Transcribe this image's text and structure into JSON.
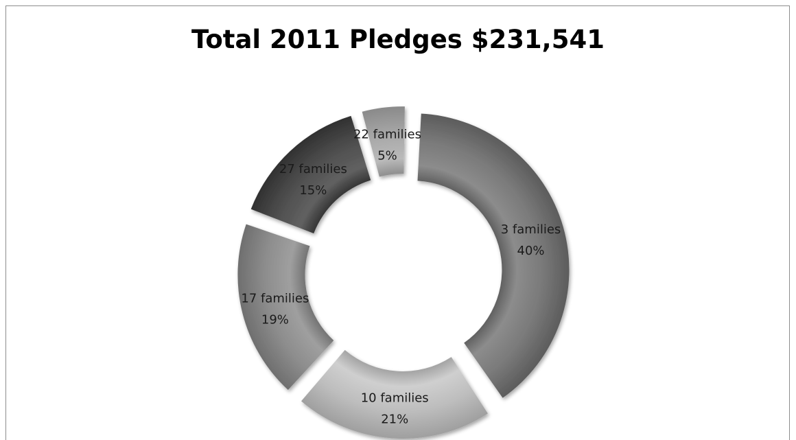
{
  "chart_data": {
    "type": "pie",
    "style": "exploded-donut",
    "title": "Total 2011 Pledges $231,541",
    "slices": [
      {
        "label": "3 families",
        "percent_label": "40%",
        "value": 40,
        "color": "#7a7a7a"
      },
      {
        "label": "10 families",
        "percent_label": "21%",
        "value": 21,
        "color": "#bdbdbd"
      },
      {
        "label": "17 families",
        "percent_label": "19%",
        "value": 19,
        "color": "#8d8d8d"
      },
      {
        "label": "27 families",
        "percent_label": "15%",
        "value": 15,
        "color": "#4f4f4f"
      },
      {
        "label": "22 families",
        "percent_label": "5%",
        "value": 5,
        "color": "#a8a8a8"
      }
    ],
    "legend": "none"
  }
}
